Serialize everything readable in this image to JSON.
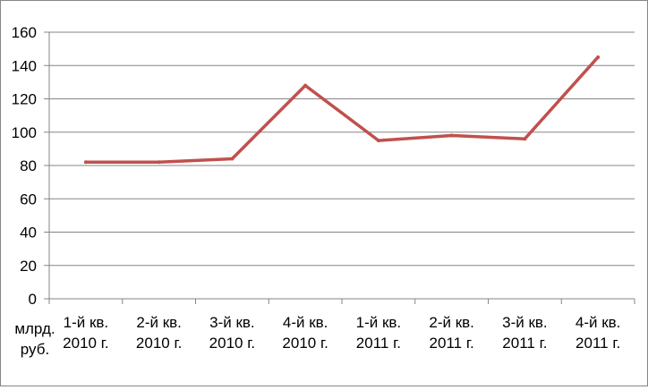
{
  "chart_data": {
    "type": "line",
    "categories": [
      [
        "1-й кв.",
        "2010 г."
      ],
      [
        "2-й кв.",
        "2010 г."
      ],
      [
        "3-й кв.",
        "2010 г."
      ],
      [
        "4-й кв.",
        "2010 г."
      ],
      [
        "1-й кв.",
        "2011 г."
      ],
      [
        "2-й кв.",
        "2011 г."
      ],
      [
        "3-й кв.",
        "2011 г."
      ],
      [
        "4-й кв.",
        "2011 г."
      ]
    ],
    "series": [
      {
        "values": [
          82,
          82,
          84,
          128,
          95,
          98,
          96,
          145
        ],
        "color": "#c0504d"
      }
    ],
    "ylim": [
      0,
      160
    ],
    "yticks": [
      0,
      20,
      40,
      60,
      80,
      100,
      120,
      140,
      160
    ],
    "yunit": [
      "млрд.",
      "руб."
    ],
    "grid": true,
    "legend": "none",
    "title": "",
    "xlabel": "",
    "ylabel": ""
  }
}
